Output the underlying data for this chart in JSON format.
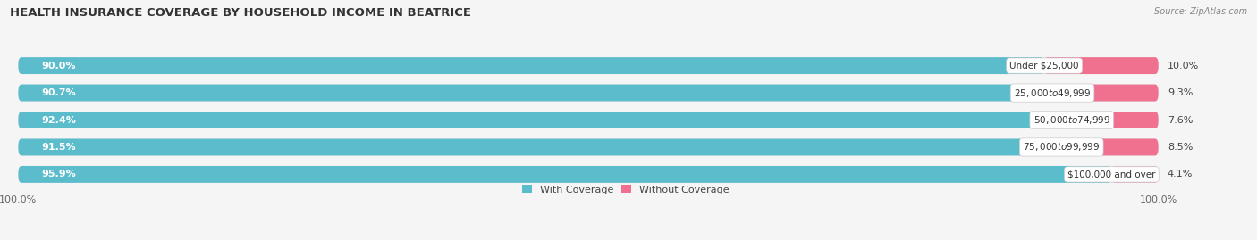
{
  "title": "HEALTH INSURANCE COVERAGE BY HOUSEHOLD INCOME IN BEATRICE",
  "source": "Source: ZipAtlas.com",
  "categories": [
    "Under $25,000",
    "$25,000 to $49,999",
    "$50,000 to $74,999",
    "$75,000 to $99,999",
    "$100,000 and over"
  ],
  "with_coverage": [
    90.0,
    90.7,
    92.4,
    91.5,
    95.9
  ],
  "without_coverage": [
    10.0,
    9.3,
    7.6,
    8.5,
    4.1
  ],
  "color_with": "#5bbccc",
  "color_without": "#f07090",
  "color_without_last": "#f0a0c0",
  "bar_bg_color": "#e8e8e8",
  "bar_height": 0.62,
  "background_color": "#f5f5f5",
  "bar_background": "#e0e0e0",
  "title_fontsize": 9.5,
  "label_fontsize": 8,
  "cat_fontsize": 7.5,
  "tick_fontsize": 8,
  "legend_fontsize": 8
}
